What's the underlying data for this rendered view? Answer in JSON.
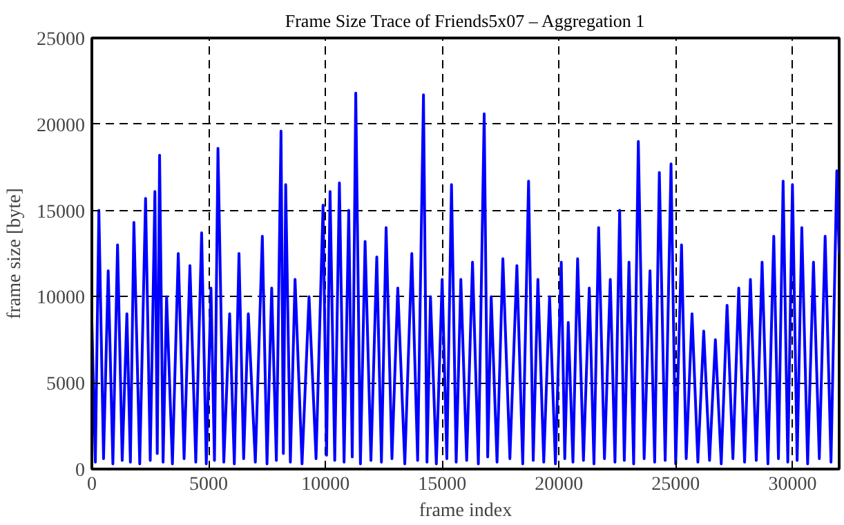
{
  "chart_data": {
    "type": "line",
    "title": "Frame Size Trace of Friends5x07 – Aggregation 1",
    "xlabel": "frame index",
    "ylabel": "frame size [byte]",
    "xlim": [
      0,
      32000
    ],
    "ylim": [
      0,
      25000
    ],
    "xticks": [
      0,
      5000,
      10000,
      15000,
      20000,
      25000,
      30000
    ],
    "yticks": [
      0,
      5000,
      10000,
      15000,
      20000,
      25000
    ],
    "grid": true,
    "line_style": "solid",
    "series": [
      {
        "color": "#0000ff",
        "x": [
          0,
          150,
          300,
          500,
          700,
          900,
          1100,
          1300,
          1500,
          1650,
          1800,
          2050,
          2300,
          2500,
          2700,
          2800,
          2900,
          3050,
          3200,
          3450,
          3700,
          3950,
          4200,
          4450,
          4700,
          4900,
          5100,
          5250,
          5400,
          5650,
          5900,
          6100,
          6300,
          6500,
          6700,
          7000,
          7300,
          7500,
          7700,
          7900,
          8100,
          8200,
          8300,
          8500,
          8700,
          9000,
          9300,
          9600,
          9900,
          10050,
          10200,
          10400,
          10600,
          10800,
          11000,
          11150,
          11300,
          11500,
          11700,
          11950,
          12200,
          12400,
          12600,
          12850,
          13100,
          13400,
          13700,
          13950,
          14200,
          14350,
          14500,
          14750,
          15000,
          15200,
          15400,
          15600,
          15800,
          16050,
          16300,
          16550,
          16800,
          16950,
          17100,
          17350,
          17600,
          17900,
          18200,
          18450,
          18700,
          18900,
          19100,
          19350,
          19600,
          19850,
          20100,
          20250,
          20400,
          20600,
          20800,
          21050,
          21300,
          21500,
          21700,
          21950,
          22200,
          22400,
          22600,
          22800,
          23000,
          23200,
          23400,
          23650,
          23900,
          24100,
          24300,
          24550,
          24800,
          25000,
          25250,
          25450,
          25700,
          25950,
          26200,
          26450,
          26700,
          26950,
          27200,
          27450,
          27700,
          27950,
          28200,
          28450,
          28700,
          28950,
          29200,
          29400,
          29600,
          29800,
          30000,
          30200,
          30400,
          30650,
          30900,
          31150,
          31400,
          31650,
          31900,
          32000
        ],
        "values": [
          8500,
          400,
          15000,
          600,
          11500,
          300,
          13000,
          500,
          9000,
          400,
          14300,
          300,
          15700,
          500,
          16100,
          900,
          18200,
          400,
          10000,
          300,
          12500,
          600,
          11800,
          400,
          13700,
          300,
          10500,
          500,
          18600,
          400,
          9000,
          300,
          12500,
          600,
          9000,
          400,
          13500,
          300,
          10500,
          500,
          19600,
          900,
          16500,
          400,
          11000,
          300,
          10000,
          600,
          15300,
          800,
          16100,
          500,
          16600,
          400,
          15000,
          700,
          21800,
          300,
          13200,
          500,
          12300,
          400,
          14000,
          600,
          10500,
          300,
          12500,
          500,
          21700,
          400,
          10000,
          300,
          11000,
          600,
          16500,
          400,
          11000,
          500,
          12000,
          300,
          20600,
          700,
          10000,
          400,
          12200,
          600,
          11800,
          300,
          16700,
          500,
          11000,
          400,
          10000,
          300,
          12000,
          600,
          8500,
          400,
          12200,
          500,
          10500,
          300,
          14000,
          600,
          11000,
          400,
          15000,
          500,
          12000,
          300,
          19000,
          600,
          11500,
          400,
          17200,
          500,
          17700,
          300,
          13000,
          600,
          9000,
          400,
          8000,
          500,
          7500,
          300,
          9500,
          600,
          10500,
          400,
          11000,
          500,
          12000,
          300,
          13500,
          600,
          16700,
          400,
          16500,
          500,
          14000,
          300,
          12000,
          600,
          13500,
          400,
          17300,
          12500
        ]
      }
    ]
  }
}
